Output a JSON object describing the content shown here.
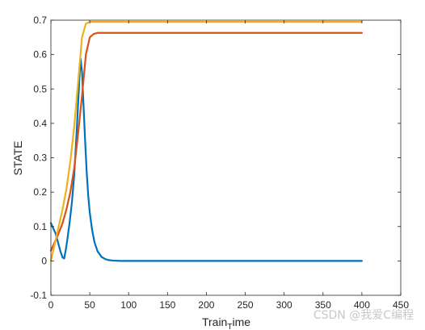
{
  "chart_data": {
    "type": "line",
    "title": "",
    "xlabel": "Train",
    "xlabel_subscript": "T",
    "xlabel_suffix": "ime",
    "ylabel": "STATE",
    "xlim": [
      0,
      450
    ],
    "ylim": [
      -0.1,
      0.7
    ],
    "xticks": [
      "0",
      "50",
      "100",
      "150",
      "200",
      "250",
      "300",
      "350",
      "400",
      "450"
    ],
    "yticks": [
      "-0.1",
      "0",
      "0.1",
      "0.2",
      "0.3",
      "0.4",
      "0.5",
      "0.6",
      "0.7"
    ],
    "grid": false,
    "legend": "none",
    "series": [
      {
        "color": "#0072BD",
        "x": [
          0,
          3,
          6,
          9,
          12,
          15,
          17,
          19,
          21,
          24,
          27,
          30,
          33,
          36,
          38,
          40,
          42,
          44,
          46,
          48,
          50,
          53,
          56,
          60,
          65,
          70,
          75,
          80,
          90,
          100,
          150,
          200,
          300,
          400
        ],
        "y": [
          0.11,
          0.095,
          0.08,
          0.055,
          0.03,
          0.01,
          0.007,
          0.03,
          0.06,
          0.11,
          0.17,
          0.25,
          0.37,
          0.5,
          0.59,
          0.55,
          0.45,
          0.35,
          0.26,
          0.19,
          0.14,
          0.09,
          0.055,
          0.028,
          0.012,
          0.005,
          0.002,
          0.001,
          0.0,
          0.0,
          0.0,
          0.0,
          0.0,
          0.0
        ]
      },
      {
        "color": "#D95319",
        "x": [
          0,
          5,
          10,
          15,
          20,
          25,
          30,
          35,
          40,
          45,
          50,
          55,
          60,
          70,
          80,
          100,
          200,
          300,
          400
        ],
        "y": [
          0.03,
          0.055,
          0.08,
          0.11,
          0.15,
          0.2,
          0.27,
          0.37,
          0.48,
          0.6,
          0.65,
          0.66,
          0.663,
          0.663,
          0.663,
          0.663,
          0.663,
          0.663,
          0.663
        ]
      },
      {
        "color": "#EDB120",
        "x": [
          0,
          5,
          10,
          15,
          20,
          25,
          30,
          35,
          40,
          45,
          50,
          55,
          60,
          80,
          100,
          200,
          300,
          400
        ],
        "y": [
          0.0,
          0.05,
          0.1,
          0.15,
          0.21,
          0.29,
          0.39,
          0.52,
          0.65,
          0.69,
          0.695,
          0.695,
          0.695,
          0.695,
          0.695,
          0.695,
          0.695,
          0.695
        ]
      }
    ]
  },
  "watermark": "CSDN @我爱C编程"
}
